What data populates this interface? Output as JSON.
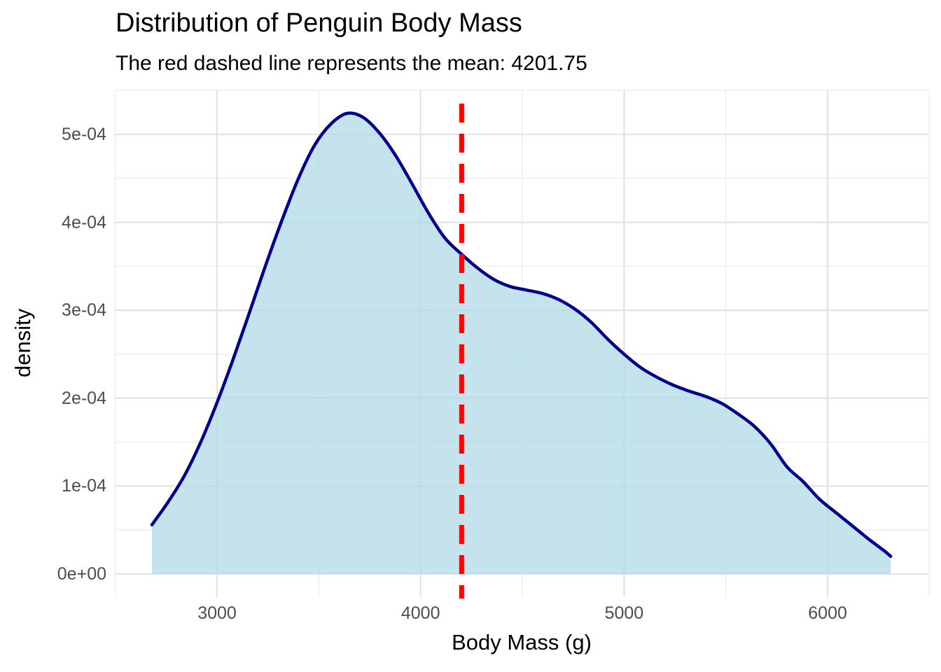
{
  "chart_data": {
    "type": "area",
    "subtype": "density",
    "title": "Distribution of Penguin Body Mass",
    "subtitle": "The red dashed line represents the mean: 4201.75",
    "xlabel": "Body Mass (g)",
    "ylabel": "density",
    "xlim": [
      2498,
      6495
    ],
    "ylim": [
      0,
      0.00055
    ],
    "x_ticks": [
      3000,
      4000,
      5000,
      6000
    ],
    "x_tick_labels": [
      "3000",
      "4000",
      "5000",
      "6000"
    ],
    "x_minor_ticks": [
      2500,
      3500,
      4500,
      5500,
      6500
    ],
    "y_ticks": [
      0,
      0.0001,
      0.0002,
      0.0003,
      0.0004,
      0.0005
    ],
    "y_tick_labels": [
      "0e+00",
      "1e-04",
      "2e-04",
      "3e-04",
      "4e-04",
      "5e-04"
    ],
    "y_minor_ticks": [
      5e-05,
      0.00015,
      0.00025,
      0.00035,
      0.00045,
      0.00055
    ],
    "grid": true,
    "legend": "none",
    "mean_line": {
      "value": 4201.75,
      "color": "#FF0000",
      "style": "dashed",
      "orientation": "vertical"
    },
    "series": [
      {
        "name": "body_mass_density",
        "x": [
          2680,
          2760,
          2840,
          2920,
          3000,
          3080,
          3160,
          3240,
          3320,
          3400,
          3480,
          3560,
          3640,
          3720,
          3800,
          3880,
          3960,
          4040,
          4120,
          4200,
          4280,
          4360,
          4440,
          4520,
          4600,
          4680,
          4760,
          4840,
          4920,
          5000,
          5080,
          5160,
          5240,
          5320,
          5400,
          5480,
          5560,
          5640,
          5720,
          5800,
          5880,
          5960,
          6040,
          6120,
          6200,
          6280,
          6310
        ],
        "y": [
          5.6e-05,
          8.2e-05,
          0.000112,
          0.00015,
          0.000195,
          0.000245,
          0.000298,
          0.000352,
          0.000403,
          0.00045,
          0.000488,
          0.000512,
          0.000524,
          0.000519,
          0.000501,
          0.000475,
          0.000443,
          0.00041,
          0.000382,
          0.000364,
          0.000348,
          0.000335,
          0.000327,
          0.000323,
          0.000319,
          0.000312,
          0.000301,
          0.000286,
          0.000267,
          0.00025,
          0.000235,
          0.000224,
          0.000215,
          0.000208,
          0.000202,
          0.000194,
          0.000182,
          0.000168,
          0.000148,
          0.000122,
          0.000105,
          8.5e-05,
          7e-05,
          5.5e-05,
          4e-05,
          2.6e-05,
          2e-05
        ]
      }
    ],
    "colors": {
      "fill": "#ADD8E6",
      "fill_opacity": 0.72,
      "line": "#00008B",
      "mean_line": "#FF0000",
      "grid_major": "#E4E4E4",
      "grid_minor": "#F1F1F1",
      "tick_text": "#4D4D4D",
      "title_text": "#000000"
    }
  }
}
